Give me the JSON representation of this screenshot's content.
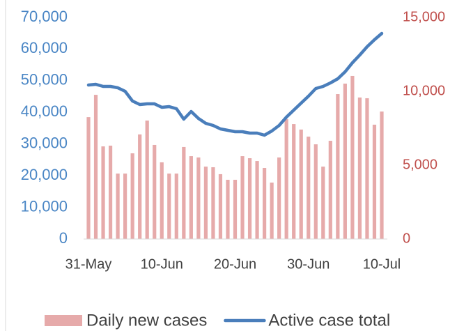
{
  "chart_data": {
    "type": "bar_line",
    "categories": [
      "31-May",
      null,
      null,
      null,
      null,
      null,
      null,
      null,
      null,
      null,
      "10-Jun",
      null,
      null,
      null,
      null,
      null,
      null,
      null,
      null,
      null,
      "20-Jun",
      null,
      null,
      null,
      null,
      null,
      null,
      null,
      null,
      null,
      "30-Jun",
      null,
      null,
      null,
      null,
      null,
      null,
      null,
      null,
      null,
      "10-Jul"
    ],
    "series": [
      {
        "name": "Daily new cases",
        "color": "#e6aaaa",
        "type": "bar",
        "axis": "y2",
        "values": [
          8250,
          9760,
          6270,
          6320,
          4430,
          4430,
          5800,
          7080,
          8020,
          6370,
          5190,
          4430,
          4430,
          6230,
          5610,
          5520,
          4900,
          4860,
          4390,
          4010,
          4010,
          5610,
          5470,
          5280,
          4810,
          3820,
          5520,
          8110,
          7780,
          7410,
          6930,
          6410,
          4900,
          6650,
          9810,
          10520,
          11040,
          9580,
          9530,
          7740,
          8630
        ]
      },
      {
        "name": "Active case total",
        "color": "#4a7ebb",
        "type": "line",
        "axis": "y",
        "values": [
          48650,
          48860,
          48200,
          48200,
          47760,
          46660,
          43580,
          42480,
          42700,
          42700,
          41600,
          41820,
          41160,
          37860,
          40280,
          38080,
          36540,
          35880,
          34780,
          34340,
          33900,
          33900,
          33460,
          33460,
          32800,
          34120,
          35880,
          38520,
          40720,
          42920,
          45120,
          47540,
          48200,
          49300,
          50620,
          52820,
          55680,
          58110,
          60750,
          62950,
          64930
        ]
      }
    ],
    "ylim": [
      0,
      70000
    ],
    "yticks": [
      0,
      {
        "value": 10000,
        "label": "10,000"
      },
      {
        "value": 20000,
        "label": "20,000"
      },
      {
        "value": 30000,
        "label": "30,000"
      },
      {
        "value": 40000,
        "label": "40,000"
      },
      {
        "value": 50000,
        "label": "50,000"
      },
      {
        "value": 60000,
        "label": "60,000"
      },
      {
        "value": 70000,
        "label": "70,000"
      }
    ],
    "y2lim": [
      0,
      15000
    ],
    "y2ticks": [
      0,
      {
        "value": 5000,
        "label": "5,000"
      },
      {
        "value": 10000,
        "label": "10,000"
      },
      {
        "value": 15000,
        "label": "15,000"
      }
    ],
    "legend": "bottom",
    "grid": false
  }
}
